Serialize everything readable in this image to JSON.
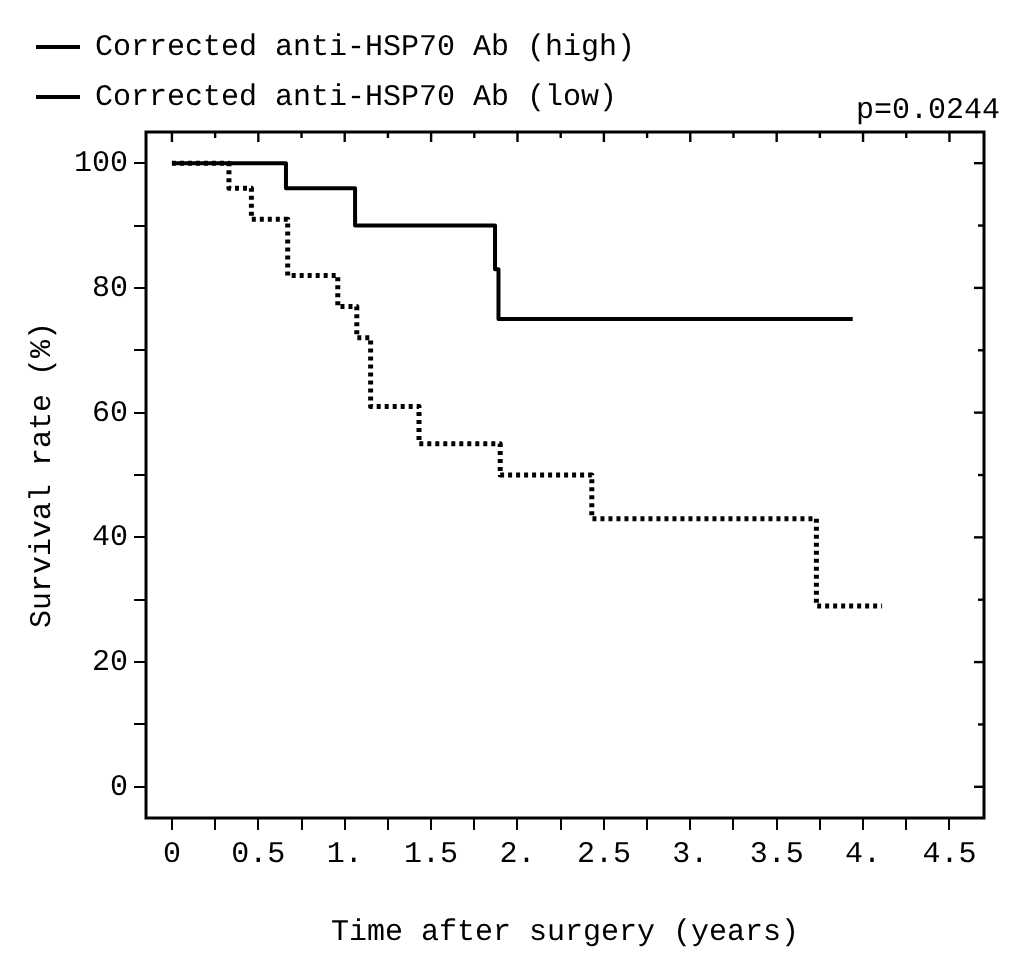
{
  "chart_data": {
    "type": "step",
    "xlabel": "Time after surgery (years)",
    "ylabel": "Survival rate (%)",
    "series": [
      {
        "name": "Corrected anti-HSP70 Ab (high)",
        "color": "#000000",
        "line_style": "solid",
        "x": [
          0,
          0.66,
          1.06,
          1.87,
          1.89,
          3.94
        ],
        "values": [
          100,
          96,
          90,
          83,
          75,
          75
        ]
      },
      {
        "name": "Corrected anti-HSP70 Ab (low)",
        "color": "#000000",
        "line_style": "dotted",
        "x": [
          0,
          0.33,
          0.46,
          0.67,
          0.96,
          1.07,
          1.15,
          1.43,
          1.9,
          2.43,
          3.73,
          4.11
        ],
        "values": [
          100,
          96,
          91,
          82,
          77,
          72,
          61,
          55,
          50,
          43,
          29,
          29
        ]
      }
    ],
    "xlim": [
      -0.15,
      4.7
    ],
    "ylim": [
      -5,
      105
    ],
    "xticks": [
      0,
      {
        "value": 0.25,
        "label": null
      },
      {
        "value": 0.5,
        "label": "0.5"
      },
      {
        "value": 0.75,
        "label": null
      },
      {
        "value": 1,
        "label": "1."
      },
      {
        "value": 1.25,
        "label": null
      },
      {
        "value": 1.5,
        "label": "1.5"
      },
      {
        "value": 1.75,
        "label": null
      },
      {
        "value": 2,
        "label": "2."
      },
      {
        "value": 2.25,
        "label": null
      },
      {
        "value": 2.5,
        "label": "2.5"
      },
      {
        "value": 2.75,
        "label": null
      },
      {
        "value": 3,
        "label": "3."
      },
      {
        "value": 3.25,
        "label": null
      },
      {
        "value": 3.5,
        "label": "3.5"
      },
      {
        "value": 3.75,
        "label": null
      },
      {
        "value": 4,
        "label": "4."
      },
      {
        "value": 4.25,
        "label": null
      },
      {
        "value": 4.5,
        "label": "4.5"
      }
    ],
    "yticks": [
      0,
      {
        "value": 10,
        "label": null
      },
      20,
      {
        "value": 30,
        "label": null
      },
      40,
      {
        "value": 50,
        "label": null
      },
      60,
      {
        "value": 70,
        "label": null
      },
      80,
      {
        "value": 90,
        "label": null
      },
      100
    ],
    "annotations": [
      "p=0.0244"
    ],
    "legend": "top left",
    "grid": false,
    "marker": "none"
  }
}
